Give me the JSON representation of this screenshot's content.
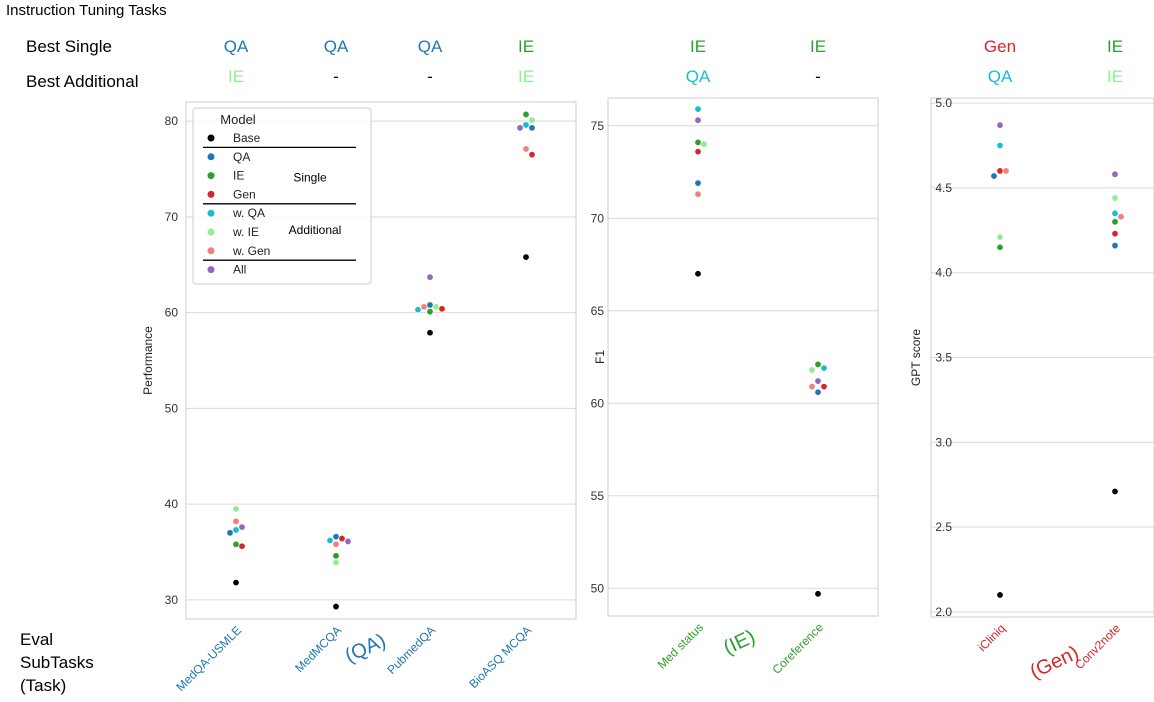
{
  "header": {
    "title": "Instruction Tuning Tasks",
    "best_single_label": "Best Single",
    "best_additional_label": "Best Additional"
  },
  "footer": {
    "eval_label_lines": [
      "Eval",
      "SubTasks",
      "(Task)"
    ],
    "task_labels": [
      {
        "text": "(QA)",
        "color": "#1f77b4"
      },
      {
        "text": "(IE)",
        "color": "#2ca02c"
      },
      {
        "text": "(Gen)",
        "color": "#d62728"
      }
    ]
  },
  "task_colors": {
    "QA": "#1f77b4",
    "IE": "#2ca02c",
    "Gen": "#d62728"
  },
  "series_colors": {
    "Base": "#000000",
    "QA": "#1f77b4",
    "IE": "#2ca02c",
    "Gen": "#d62728",
    "w. QA": "#17becf",
    "w. IE": "#90ee90",
    "w. Gen": "#f08080",
    "All": "#9467bd"
  },
  "legend": {
    "title": "Model",
    "entries": [
      "Base",
      "QA",
      "IE",
      "Gen",
      "w. QA",
      "w. IE",
      "w. Gen",
      "All"
    ],
    "group_labels": [
      "Single",
      "Additional"
    ]
  },
  "chart_data": [
    {
      "type": "scatter",
      "ylabel": "Performance",
      "ylim": [
        28,
        82
      ],
      "yticks": [
        30,
        40,
        50,
        60,
        70,
        80
      ],
      "grid": true,
      "legend_placement": "top-left",
      "task_group": "QA",
      "categories": [
        "MedQA-USMLE",
        "MedMCQA",
        "PubmedQA",
        "BioASQ MCQA"
      ],
      "best_single": [
        {
          "text": "QA",
          "color": "#1f77b4"
        },
        {
          "text": "QA",
          "color": "#1f77b4"
        },
        {
          "text": "QA",
          "color": "#1f77b4"
        },
        {
          "text": "IE",
          "color": "#2ca02c"
        }
      ],
      "best_additional": [
        {
          "text": "IE",
          "color": "#90ee90"
        },
        {
          "text": "-",
          "color": "#000000"
        },
        {
          "text": "-",
          "color": "#000000"
        },
        {
          "text": "IE",
          "color": "#90ee90"
        }
      ],
      "series": [
        {
          "name": "Base",
          "values": [
            31.8,
            29.3,
            57.9,
            65.8
          ]
        },
        {
          "name": "QA",
          "values": [
            37.0,
            36.6,
            60.8,
            79.3
          ]
        },
        {
          "name": "IE",
          "values": [
            35.8,
            34.6,
            60.1,
            80.7
          ]
        },
        {
          "name": "Gen",
          "values": [
            35.6,
            36.4,
            60.4,
            76.5
          ]
        },
        {
          "name": "w. QA",
          "values": [
            37.3,
            36.2,
            60.3,
            79.6
          ]
        },
        {
          "name": "w. IE",
          "values": [
            39.5,
            33.9,
            60.6,
            80.1
          ]
        },
        {
          "name": "w. Gen",
          "values": [
            38.2,
            35.8,
            60.6,
            77.1
          ]
        },
        {
          "name": "All",
          "values": [
            37.6,
            36.1,
            63.7,
            79.3
          ]
        }
      ]
    },
    {
      "type": "scatter",
      "ylabel": "F1",
      "ylim": [
        48.5,
        76.5
      ],
      "yticks": [
        50,
        55,
        60,
        65,
        70,
        75
      ],
      "grid": true,
      "task_group": "IE",
      "categories": [
        "Med status",
        "Coreference"
      ],
      "best_single": [
        {
          "text": "IE",
          "color": "#2ca02c"
        },
        {
          "text": "IE",
          "color": "#2ca02c"
        }
      ],
      "best_additional": [
        {
          "text": "QA",
          "color": "#17becf"
        },
        {
          "text": "-",
          "color": "#000000"
        }
      ],
      "series": [
        {
          "name": "Base",
          "values": [
            67.0,
            49.7
          ]
        },
        {
          "name": "QA",
          "values": [
            71.9,
            60.6
          ]
        },
        {
          "name": "IE",
          "values": [
            74.1,
            62.1
          ]
        },
        {
          "name": "Gen",
          "values": [
            73.6,
            60.9
          ]
        },
        {
          "name": "w. QA",
          "values": [
            75.9,
            61.9
          ]
        },
        {
          "name": "w. IE",
          "values": [
            74.0,
            61.8
          ]
        },
        {
          "name": "w. Gen",
          "values": [
            71.3,
            60.9
          ]
        },
        {
          "name": "All",
          "values": [
            75.3,
            61.2
          ]
        }
      ]
    },
    {
      "type": "scatter",
      "ylabel": "GPT score",
      "ylim": [
        1.97,
        5.03
      ],
      "yticks": [
        2.0,
        2.5,
        3.0,
        3.5,
        4.0,
        4.5,
        5.0
      ],
      "grid": true,
      "task_group": "Gen",
      "categories": [
        "iCliniq",
        "Conv2note"
      ],
      "best_single": [
        {
          "text": "Gen",
          "color": "#d62728"
        },
        {
          "text": "IE",
          "color": "#2ca02c"
        }
      ],
      "best_additional": [
        {
          "text": "QA",
          "color": "#17becf"
        },
        {
          "text": "IE",
          "color": "#90ee90"
        }
      ],
      "series": [
        {
          "name": "Base",
          "values": [
            2.1,
            2.71
          ]
        },
        {
          "name": "QA",
          "values": [
            4.57,
            4.16
          ]
        },
        {
          "name": "IE",
          "values": [
            4.15,
            4.3
          ]
        },
        {
          "name": "Gen",
          "values": [
            4.6,
            4.23
          ]
        },
        {
          "name": "w. QA",
          "values": [
            4.75,
            4.35
          ]
        },
        {
          "name": "w. IE",
          "values": [
            4.21,
            4.44
          ]
        },
        {
          "name": "w. Gen",
          "values": [
            4.6,
            4.33
          ]
        },
        {
          "name": "All",
          "values": [
            4.87,
            4.58
          ]
        }
      ]
    }
  ]
}
